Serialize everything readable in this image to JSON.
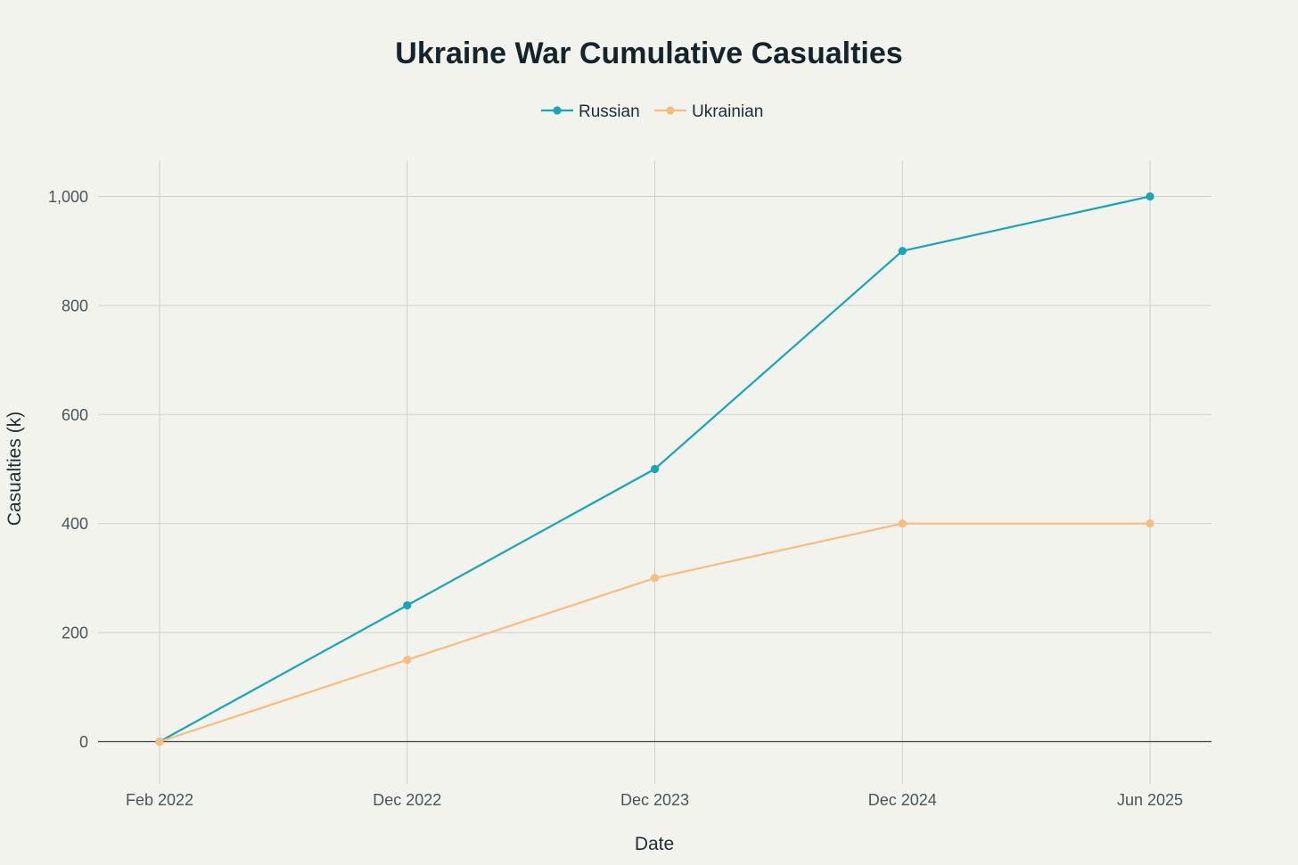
{
  "chart_data": {
    "type": "line",
    "title": "Ukraine War Cumulative Casualties",
    "xlabel": "Date",
    "ylabel": "Casualties (k)",
    "x": [
      "Feb 2022",
      "Dec 2022",
      "Dec 2023",
      "Dec 2024",
      "Jun 2025"
    ],
    "ylim": [
      -75,
      1065
    ],
    "yticks": [
      0,
      200,
      400,
      600,
      800,
      1000
    ],
    "ytick_labels": [
      "0",
      "200",
      "400",
      "600",
      "800",
      "1,000"
    ],
    "grid": true,
    "legend_position": "top-center",
    "series": [
      {
        "name": "Russian",
        "color": "#17a6b8",
        "values": [
          0,
          250,
          500,
          900,
          1000
        ]
      },
      {
        "name": "Ukrainian",
        "color": "#f7bd7e",
        "values": [
          0,
          150,
          300,
          400,
          400
        ]
      }
    ]
  }
}
